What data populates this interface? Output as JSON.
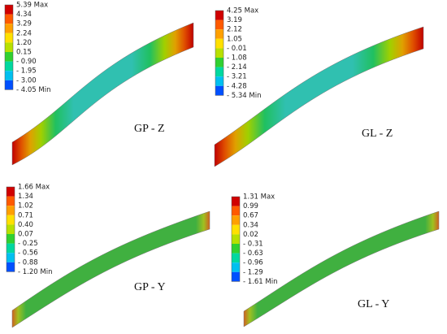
{
  "panels": [
    {
      "label": "GP - Z",
      "legend": [
        "5.39 Max",
        "4.34",
        "3.29",
        "2.24",
        "1.20",
        "0.15",
        "- 0.90",
        "- 1.95",
        "- 3.00",
        "- 4.05 Min"
      ]
    },
    {
      "label": "GL - Z",
      "legend": [
        "4.25 Max",
        "3.19",
        "2.12",
        "1.05",
        "- 0.01",
        "- 1.08",
        "- 2.14",
        "- 3.21",
        "- 4.28",
        "- 5.34 Min"
      ]
    },
    {
      "label": "GP - Y",
      "legend": [
        "1.66 Max",
        "1.34",
        "1.02",
        "0.71",
        "0.40",
        "0.07",
        "- 0.25",
        "- 0.56",
        "- 0.88",
        "- 1.20 Min"
      ]
    },
    {
      "label": "GL - Y",
      "legend": [
        "1.31 Max",
        "0.99",
        "0.67",
        "0.34",
        "0.02",
        "- 0.31",
        "- 0.63",
        "- 0.96",
        "- 1.29",
        "- 1.61 Min"
      ]
    }
  ]
}
